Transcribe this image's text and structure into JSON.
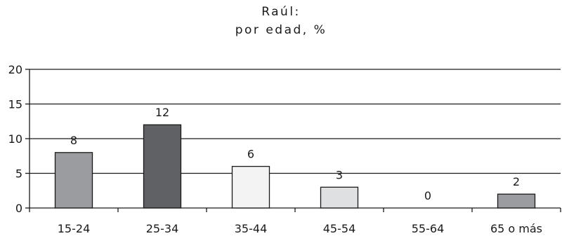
{
  "chart_data": {
    "type": "bar",
    "title": "Raúl:",
    "subtitle": "por edad, %",
    "xlabel": "",
    "ylabel": "",
    "categories": [
      "15-24",
      "25-34",
      "35-44",
      "45-54",
      "55-64",
      "65 o más"
    ],
    "values": [
      8,
      12,
      6,
      3,
      0,
      2
    ],
    "value_labels": [
      "8",
      "12",
      "6",
      "3",
      "0",
      "2"
    ],
    "bar_colors": [
      "#9b9ca0",
      "#606165",
      "#f3f3f4",
      "#dfe0e2",
      "#ffffff",
      "#9b9ca0"
    ],
    "ylim": [
      0,
      20
    ],
    "yticks": [
      0,
      5,
      10,
      15,
      20
    ],
    "grid": true,
    "legend": "none"
  }
}
